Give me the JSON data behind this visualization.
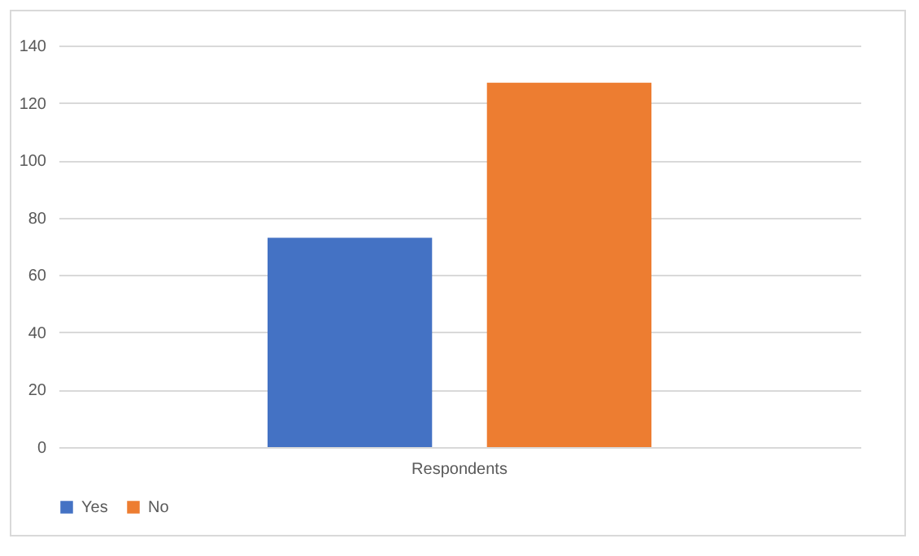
{
  "chart_data": {
    "type": "bar",
    "categories": [
      "Respondents"
    ],
    "series": [
      {
        "name": "Yes",
        "color": "#4472c4",
        "values": [
          73
        ]
      },
      {
        "name": "No",
        "color": "#ed7d31",
        "values": [
          127
        ]
      }
    ],
    "ylim": [
      0,
      140
    ],
    "yticks": [
      0,
      20,
      40,
      60,
      80,
      100,
      120,
      140
    ],
    "grid": "y",
    "legend": "bottom"
  }
}
